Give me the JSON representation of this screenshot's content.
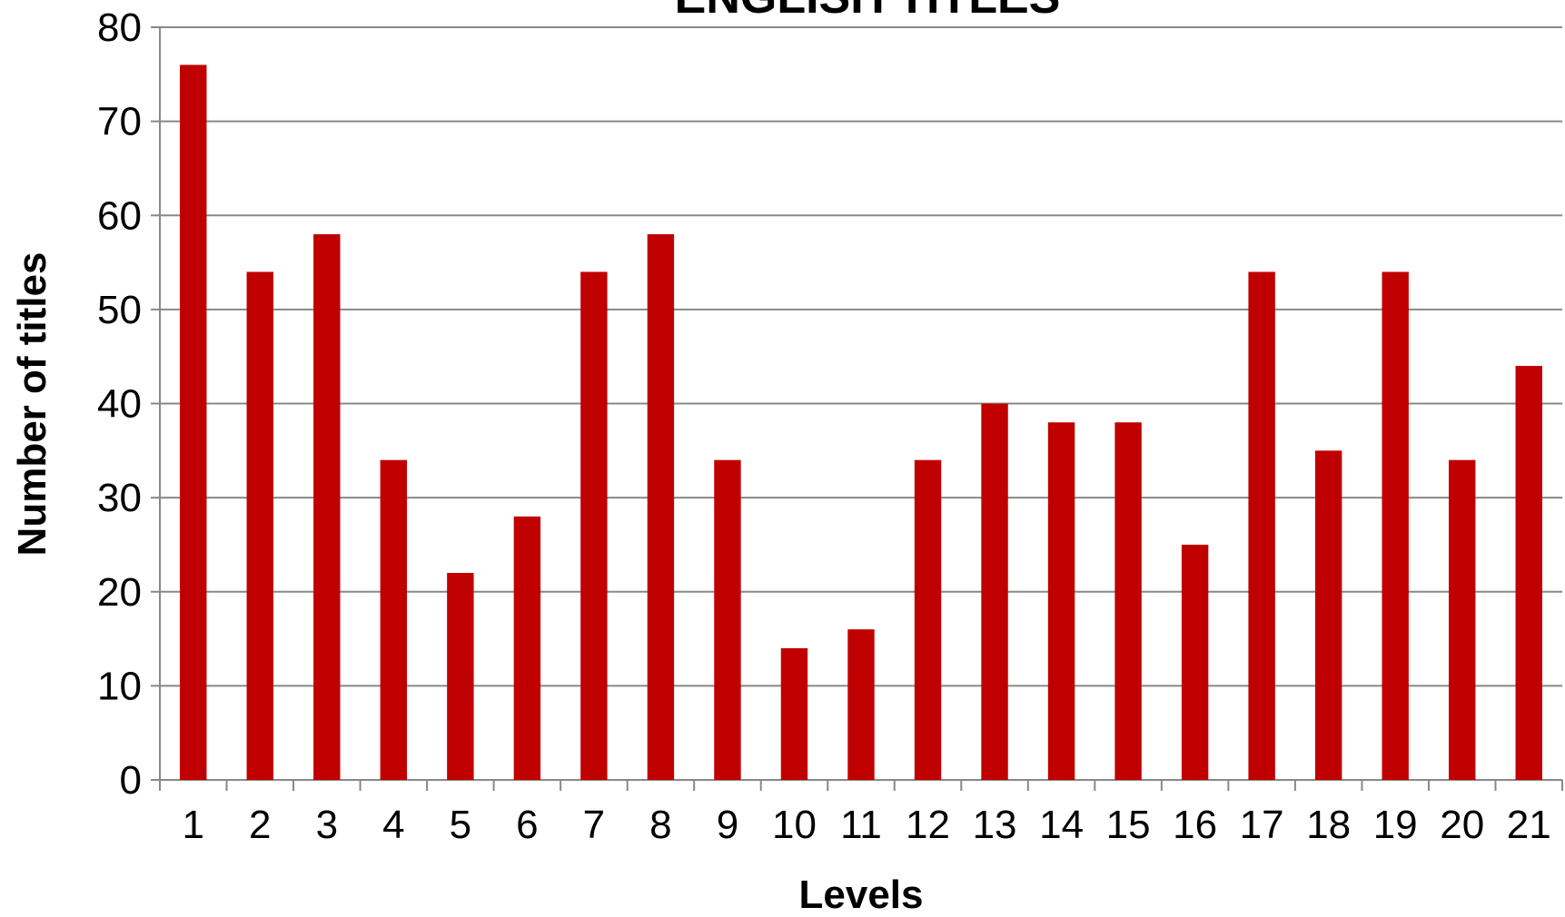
{
  "chart_data": {
    "type": "bar",
    "title": "ENGLISH TITLES",
    "x_label": "Levels",
    "y_label": "Number of titles",
    "categories": [
      "1",
      "2",
      "3",
      "4",
      "5",
      "6",
      "7",
      "8",
      "9",
      "10",
      "11",
      "12",
      "13",
      "14",
      "15",
      "16",
      "17",
      "18",
      "19",
      "20",
      "21"
    ],
    "values": [
      76,
      54,
      58,
      34,
      22,
      28,
      54,
      58,
      34,
      14,
      16,
      34,
      40,
      38,
      38,
      25,
      54,
      35,
      54,
      34,
      44
    ],
    "color": "#c00000",
    "ylim": [
      0,
      80
    ],
    "yticks": [
      0,
      10,
      20,
      30,
      40,
      50,
      60,
      70,
      80
    ],
    "grid": true
  }
}
